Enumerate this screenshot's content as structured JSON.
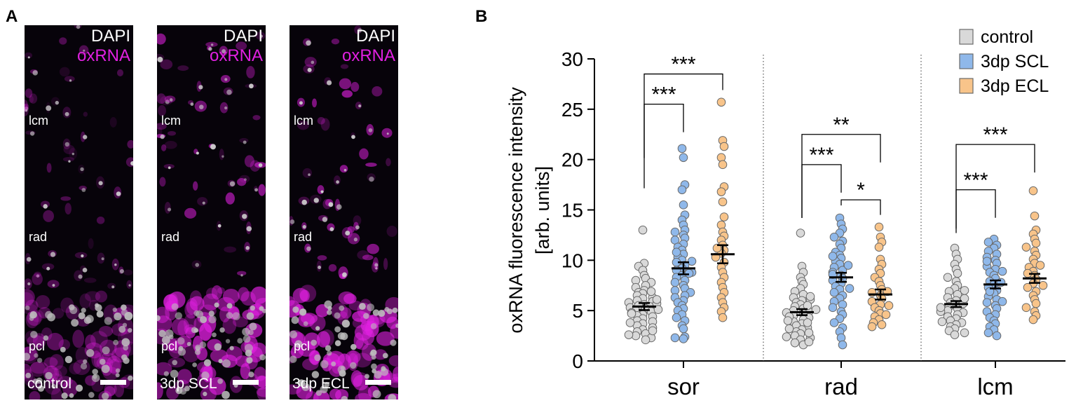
{
  "panel_a": {
    "letter": "A",
    "channel_dapi": "DAPI",
    "channel_oxrna": "oxRNA",
    "layers": {
      "lcm": "lcm",
      "rad": "rad",
      "pcl": "pcl"
    },
    "images": [
      {
        "condition": "control"
      },
      {
        "condition": "3dp SCL"
      },
      {
        "condition": "3dp ECL"
      }
    ]
  },
  "panel_b": {
    "letter": "B"
  },
  "colors": {
    "control": "#d9d9d9",
    "scl": "#8fb8ea",
    "ecl": "#f8c48a",
    "magenta": "#e020e0"
  },
  "chart_data": {
    "type": "scatter",
    "title": "",
    "ylabel_line1": "oxRNA fluorescence intensity",
    "ylabel_line2": "[arb. units]",
    "ylim": [
      0,
      30
    ],
    "yticks": [
      0,
      5,
      10,
      15,
      20,
      25,
      30
    ],
    "categories": [
      "sor",
      "rad",
      "lcm"
    ],
    "legend": [
      "control",
      "3dp SCL",
      "3dp ECL"
    ],
    "groups": [
      {
        "region": "sor",
        "series": [
          {
            "name": "control",
            "mean": 5.4,
            "sem": 0.35,
            "values": [
              13.0,
              9.7,
              9.4,
              9.0,
              8.5,
              8.2,
              8.0,
              7.8,
              7.5,
              7.3,
              7.0,
              6.8,
              6.7,
              6.5,
              6.3,
              6.2,
              6.0,
              5.9,
              5.8,
              5.6,
              5.5,
              5.4,
              5.3,
              5.2,
              5.0,
              4.9,
              4.8,
              4.6,
              4.5,
              4.4,
              4.2,
              4.0,
              3.9,
              3.7,
              3.5,
              3.3,
              3.1,
              2.9,
              2.7,
              2.5,
              2.3,
              2.1,
              5.7,
              5.1,
              4.7,
              6.1,
              3.8,
              3.0,
              2.6,
              6.9
            ]
          },
          {
            "name": "3dp SCL",
            "mean": 9.2,
            "sem": 0.6,
            "values": [
              21.1,
              20.2,
              17.5,
              17.0,
              15.5,
              14.5,
              14.0,
              13.5,
              13.0,
              12.8,
              12.5,
              12.2,
              12.0,
              11.6,
              11.3,
              11.0,
              10.6,
              10.3,
              10.0,
              9.8,
              9.5,
              9.2,
              9.0,
              8.8,
              8.5,
              8.3,
              8.0,
              7.8,
              7.5,
              7.2,
              7.0,
              6.8,
              6.5,
              6.3,
              6.0,
              5.8,
              5.5,
              5.2,
              5.0,
              4.6,
              4.3,
              4.0,
              3.5,
              3.2,
              2.4,
              2.3,
              2.2,
              9.9,
              8.7,
              10.8
            ]
          },
          {
            "name": "3dp ECL",
            "mean": 10.6,
            "sem": 0.9,
            "values": [
              25.7,
              21.9,
              21.3,
              20.2,
              19.5,
              17.3,
              16.8,
              15.8,
              14.3,
              13.5,
              12.8,
              12.4,
              12.0,
              11.5,
              11.0,
              10.7,
              10.3,
              9.8,
              9.3,
              8.8,
              8.3,
              7.8,
              7.3,
              6.8,
              6.3,
              5.8,
              5.3,
              4.9,
              4.3,
              11.2
            ]
          }
        ]
      },
      {
        "region": "rad",
        "series": [
          {
            "name": "control",
            "mean": 4.85,
            "sem": 0.3,
            "values": [
              12.7,
              9.4,
              8.8,
              8.3,
              7.9,
              7.6,
              7.2,
              6.9,
              6.6,
              6.3,
              6.0,
              5.8,
              5.6,
              5.4,
              5.2,
              5.0,
              4.9,
              4.7,
              4.5,
              4.3,
              4.1,
              3.9,
              3.7,
              3.5,
              3.3,
              3.1,
              2.9,
              2.7,
              2.5,
              2.3,
              2.1,
              1.8,
              1.6,
              4.8,
              5.1,
              4.4,
              3.8,
              2.8,
              6.1,
              5.5,
              4.0,
              3.2,
              2.4,
              1.9,
              6.4
            ]
          },
          {
            "name": "3dp SCL",
            "mean": 8.3,
            "sem": 0.45,
            "values": [
              14.2,
              13.6,
              13.1,
              12.7,
              12.3,
              11.9,
              11.6,
              11.2,
              10.8,
              10.5,
              10.2,
              9.9,
              9.6,
              9.3,
              9.0,
              8.8,
              8.5,
              8.2,
              8.0,
              7.7,
              7.4,
              7.1,
              6.8,
              6.5,
              6.2,
              5.9,
              5.6,
              5.3,
              4.9,
              4.6,
              4.2,
              3.8,
              3.3,
              2.9,
              2.3,
              1.6,
              8.6,
              9.5,
              7.2,
              10.4
            ]
          },
          {
            "name": "3dp ECL",
            "mean": 6.6,
            "sem": 0.5,
            "values": [
              13.3,
              12.3,
              11.8,
              11.3,
              10.1,
              9.6,
              9.1,
              8.7,
              8.3,
              7.9,
              7.5,
              7.1,
              6.8,
              6.5,
              6.2,
              5.9,
              5.6,
              5.3,
              5.0,
              4.7,
              4.4,
              4.1,
              3.8,
              3.6,
              3.4,
              6.9,
              5.5,
              4.6
            ]
          }
        ]
      },
      {
        "region": "lcm",
        "series": [
          {
            "name": "control",
            "mean": 5.65,
            "sem": 0.3,
            "values": [
              11.2,
              10.6,
              10.1,
              9.6,
              9.1,
              8.7,
              8.3,
              7.9,
              7.5,
              7.2,
              6.9,
              6.6,
              6.3,
              6.0,
              5.8,
              5.6,
              5.4,
              5.2,
              5.0,
              4.8,
              4.6,
              4.4,
              4.2,
              4.0,
              3.8,
              3.6,
              3.4,
              3.2,
              3.0,
              2.8,
              2.6,
              5.7,
              6.2,
              4.9,
              3.9,
              7.0,
              5.3
            ]
          },
          {
            "name": "3dp SCL",
            "mean": 7.6,
            "sem": 0.4,
            "values": [
              12.1,
              11.8,
              11.5,
              11.2,
              10.9,
              10.6,
              10.3,
              10.0,
              9.7,
              9.4,
              9.1,
              8.8,
              8.5,
              8.2,
              7.9,
              7.6,
              7.3,
              7.0,
              6.7,
              6.4,
              6.1,
              5.8,
              5.5,
              5.2,
              4.9,
              4.6,
              4.3,
              4.0,
              3.7,
              3.4,
              3.1,
              2.8,
              2.5,
              7.8,
              8.9,
              6.9,
              9.9,
              5.9
            ]
          },
          {
            "name": "3dp ECL",
            "mean": 8.2,
            "sem": 0.45,
            "values": [
              16.9,
              14.4,
              13.0,
              12.6,
              12.1,
              11.7,
              11.3,
              10.9,
              10.5,
              10.1,
              9.7,
              9.3,
              8.9,
              8.5,
              8.1,
              7.7,
              7.3,
              6.9,
              6.5,
              6.1,
              5.7,
              5.3,
              4.9,
              4.5,
              4.1,
              8.7,
              7.5,
              9.5
            ]
          }
        ]
      }
    ],
    "significance": [
      {
        "group": 0,
        "from": 0,
        "to": 2,
        "level": 28.5,
        "label": "***"
      },
      {
        "group": 0,
        "from": 0,
        "to": 1,
        "level": 25.5,
        "label": "***"
      },
      {
        "group": 1,
        "from": 0,
        "to": 2,
        "level": 22.5,
        "label": "**"
      },
      {
        "group": 1,
        "from": 0,
        "to": 1,
        "level": 19.5,
        "label": "***"
      },
      {
        "group": 1,
        "from": 1,
        "to": 2,
        "level": 16.0,
        "label": "*"
      },
      {
        "group": 2,
        "from": 0,
        "to": 2,
        "level": 21.5,
        "label": "***"
      },
      {
        "group": 2,
        "from": 0,
        "to": 1,
        "level": 17.0,
        "label": "***"
      }
    ]
  }
}
